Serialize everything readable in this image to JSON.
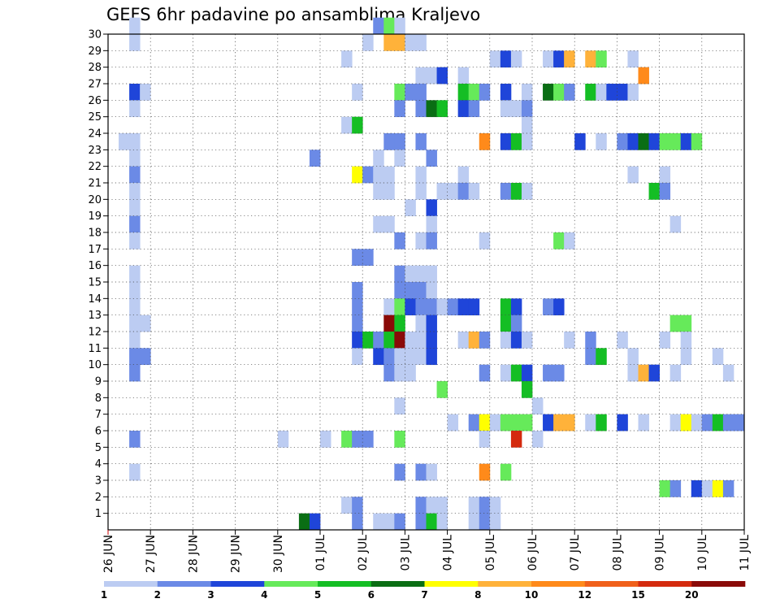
{
  "chart_data": {
    "type": "heatmap",
    "title": "GEFS 6hr padavine po ansamblima Kraljevo",
    "xlabel": "",
    "ylabel": "",
    "x_time_steps": 60,
    "x_tick_labels": [
      "26 JUN",
      "27 JUN",
      "28 JUN",
      "29 JUN",
      "30 JUN",
      "01 JUL",
      "02 JUL",
      "03 JUL",
      "04 JUL",
      "05 JUL",
      "06 JUL",
      "07 JUL",
      "08 JUL",
      "09 JUL",
      "10 JUL",
      "11 JUL"
    ],
    "y_tick_labels": [
      "1",
      "2",
      "3",
      "4",
      "5",
      "6",
      "7",
      "8",
      "9",
      "10",
      "11",
      "12",
      "13",
      "14",
      "15",
      "16",
      "17",
      "18",
      "19",
      "20",
      "21",
      "22",
      "23",
      "24",
      "25",
      "26",
      "27",
      "28",
      "29",
      "30"
    ],
    "ylim": [
      0,
      30
    ],
    "grid": true,
    "legend": {
      "placement": "bottom",
      "labels": [
        "1",
        "2",
        "3",
        "4",
        "5",
        "6",
        "7",
        "8",
        "10",
        "12",
        "15",
        "20"
      ],
      "colors": [
        "#bcccf2",
        "#6b8ae6",
        "#1f45d9",
        "#66ea5a",
        "#14be24",
        "#0a6e14",
        "#ffff00",
        "#ffb23a",
        "#ff8a1a",
        "#f0601a",
        "#d42a0e",
        "#8a0a08"
      ]
    },
    "cells": [
      {
        "m": 30,
        "t": [
          [
            2,
            0
          ],
          [
            25,
            1
          ],
          [
            26,
            3
          ],
          [
            27,
            0
          ]
        ]
      },
      {
        "m": 29,
        "t": [
          [
            2,
            0
          ],
          [
            24,
            0
          ],
          [
            26,
            7
          ],
          [
            27,
            7
          ],
          [
            28,
            0
          ],
          [
            29,
            0
          ]
        ]
      },
      {
        "m": 28,
        "t": [
          [
            22,
            0
          ],
          [
            36,
            0
          ],
          [
            37,
            2
          ],
          [
            38,
            0
          ],
          [
            41,
            0
          ],
          [
            42,
            2
          ],
          [
            43,
            7
          ],
          [
            45,
            7
          ],
          [
            46,
            3
          ],
          [
            49,
            0
          ]
        ]
      },
      {
        "m": 27,
        "t": [
          [
            29,
            0
          ],
          [
            30,
            0
          ],
          [
            31,
            2
          ],
          [
            33,
            0
          ],
          [
            50,
            8
          ]
        ]
      },
      {
        "m": 26,
        "t": [
          [
            2,
            2
          ],
          [
            3,
            0
          ],
          [
            23,
            0
          ],
          [
            27,
            3
          ],
          [
            28,
            1
          ],
          [
            29,
            1
          ],
          [
            33,
            4
          ],
          [
            34,
            3
          ],
          [
            35,
            1
          ],
          [
            37,
            2
          ],
          [
            39,
            0
          ],
          [
            41,
            5
          ],
          [
            42,
            3
          ],
          [
            43,
            1
          ],
          [
            45,
            4
          ],
          [
            46,
            0
          ],
          [
            47,
            2
          ],
          [
            48,
            2
          ],
          [
            49,
            0
          ]
        ]
      },
      {
        "m": 25,
        "t": [
          [
            2,
            0
          ],
          [
            27,
            1
          ],
          [
            29,
            1
          ],
          [
            30,
            5
          ],
          [
            31,
            4
          ],
          [
            33,
            2
          ],
          [
            34,
            1
          ],
          [
            37,
            0
          ],
          [
            38,
            0
          ],
          [
            39,
            1
          ]
        ]
      },
      {
        "m": 24,
        "t": [
          [
            22,
            0
          ],
          [
            23,
            4
          ],
          [
            39,
            0
          ]
        ]
      },
      {
        "m": 23,
        "t": [
          [
            1,
            0
          ],
          [
            2,
            0
          ],
          [
            26,
            1
          ],
          [
            27,
            1
          ],
          [
            29,
            1
          ],
          [
            35,
            8
          ],
          [
            37,
            2
          ],
          [
            38,
            4
          ],
          [
            39,
            0
          ],
          [
            44,
            2
          ],
          [
            46,
            0
          ],
          [
            48,
            1
          ],
          [
            49,
            2
          ],
          [
            50,
            5
          ],
          [
            51,
            2
          ],
          [
            52,
            3
          ],
          [
            53,
            3
          ],
          [
            54,
            2
          ],
          [
            55,
            3
          ]
        ]
      },
      {
        "m": 22,
        "t": [
          [
            2,
            0
          ],
          [
            19,
            1
          ],
          [
            25,
            0
          ],
          [
            27,
            0
          ],
          [
            30,
            1
          ]
        ]
      },
      {
        "m": 21,
        "t": [
          [
            2,
            1
          ],
          [
            23,
            6
          ],
          [
            24,
            1
          ],
          [
            25,
            0
          ],
          [
            26,
            0
          ],
          [
            29,
            0
          ],
          [
            33,
            0
          ],
          [
            49,
            0
          ],
          [
            52,
            0
          ]
        ]
      },
      {
        "m": 20,
        "t": [
          [
            2,
            0
          ],
          [
            25,
            0
          ],
          [
            26,
            0
          ],
          [
            29,
            0
          ],
          [
            31,
            0
          ],
          [
            32,
            0
          ],
          [
            33,
            1
          ],
          [
            34,
            0
          ],
          [
            37,
            1
          ],
          [
            38,
            4
          ],
          [
            39,
            0
          ],
          [
            51,
            4
          ],
          [
            52,
            1
          ]
        ]
      },
      {
        "m": 19,
        "t": [
          [
            2,
            0
          ],
          [
            28,
            0
          ],
          [
            30,
            2
          ]
        ]
      },
      {
        "m": 18,
        "t": [
          [
            2,
            1
          ],
          [
            25,
            0
          ],
          [
            26,
            0
          ],
          [
            30,
            0
          ],
          [
            53,
            0
          ]
        ]
      },
      {
        "m": 17,
        "t": [
          [
            2,
            0
          ],
          [
            27,
            1
          ],
          [
            29,
            0
          ],
          [
            30,
            1
          ],
          [
            35,
            0
          ],
          [
            42,
            3
          ],
          [
            43,
            0
          ]
        ]
      },
      {
        "m": 16,
        "t": [
          [
            23,
            1
          ],
          [
            24,
            1
          ]
        ]
      },
      {
        "m": 15,
        "t": [
          [
            2,
            0
          ],
          [
            27,
            1
          ],
          [
            28,
            0
          ],
          [
            29,
            0
          ],
          [
            30,
            0
          ]
        ]
      },
      {
        "m": 14,
        "t": [
          [
            2,
            0
          ],
          [
            23,
            1
          ],
          [
            27,
            1
          ],
          [
            28,
            1
          ],
          [
            29,
            1
          ],
          [
            30,
            0
          ]
        ]
      },
      {
        "m": 13,
        "t": [
          [
            2,
            0
          ],
          [
            23,
            1
          ],
          [
            26,
            0
          ],
          [
            27,
            3
          ],
          [
            28,
            2
          ],
          [
            29,
            1
          ],
          [
            30,
            1
          ],
          [
            31,
            0
          ],
          [
            32,
            1
          ],
          [
            33,
            2
          ],
          [
            34,
            2
          ],
          [
            37,
            4
          ],
          [
            38,
            2
          ],
          [
            41,
            1
          ],
          [
            42,
            2
          ]
        ]
      },
      {
        "m": 12,
        "t": [
          [
            2,
            0
          ],
          [
            3,
            0
          ],
          [
            23,
            1
          ],
          [
            26,
            11
          ],
          [
            27,
            4
          ],
          [
            29,
            0
          ],
          [
            30,
            2
          ],
          [
            37,
            4
          ],
          [
            38,
            1
          ],
          [
            53,
            3
          ],
          [
            54,
            3
          ]
        ]
      },
      {
        "m": 11,
        "t": [
          [
            2,
            0
          ],
          [
            23,
            2
          ],
          [
            24,
            4
          ],
          [
            25,
            1
          ],
          [
            26,
            4
          ],
          [
            27,
            11
          ],
          [
            28,
            0
          ],
          [
            29,
            0
          ],
          [
            30,
            2
          ],
          [
            33,
            0
          ],
          [
            34,
            7
          ],
          [
            35,
            1
          ],
          [
            37,
            0
          ],
          [
            38,
            2
          ],
          [
            39,
            0
          ],
          [
            43,
            0
          ],
          [
            45,
            1
          ],
          [
            48,
            0
          ],
          [
            52,
            0
          ],
          [
            54,
            0
          ]
        ]
      },
      {
        "m": 10,
        "t": [
          [
            2,
            1
          ],
          [
            3,
            1
          ],
          [
            23,
            0
          ],
          [
            25,
            2
          ],
          [
            26,
            1
          ],
          [
            27,
            0
          ],
          [
            28,
            0
          ],
          [
            29,
            0
          ],
          [
            30,
            2
          ],
          [
            45,
            1
          ],
          [
            46,
            4
          ],
          [
            49,
            0
          ],
          [
            54,
            0
          ],
          [
            57,
            0
          ]
        ]
      },
      {
        "m": 9,
        "t": [
          [
            2,
            1
          ],
          [
            26,
            1
          ],
          [
            27,
            0
          ],
          [
            28,
            0
          ],
          [
            35,
            1
          ],
          [
            37,
            0
          ],
          [
            38,
            4
          ],
          [
            39,
            2
          ],
          [
            41,
            1
          ],
          [
            42,
            1
          ],
          [
            49,
            0
          ],
          [
            50,
            7
          ],
          [
            51,
            2
          ],
          [
            53,
            0
          ],
          [
            58,
            0
          ]
        ]
      },
      {
        "m": 8,
        "t": [
          [
            31,
            3
          ],
          [
            39,
            4
          ]
        ]
      },
      {
        "m": 7,
        "t": [
          [
            27,
            0
          ],
          [
            40,
            0
          ]
        ]
      },
      {
        "m": 6,
        "t": [
          [
            32,
            0
          ],
          [
            34,
            1
          ],
          [
            35,
            6
          ],
          [
            36,
            0
          ],
          [
            37,
            3
          ],
          [
            38,
            3
          ],
          [
            39,
            3
          ],
          [
            41,
            2
          ],
          [
            42,
            7
          ],
          [
            43,
            7
          ],
          [
            45,
            0
          ],
          [
            46,
            4
          ],
          [
            48,
            2
          ],
          [
            50,
            0
          ],
          [
            53,
            0
          ],
          [
            54,
            6
          ],
          [
            55,
            0
          ],
          [
            56,
            1
          ],
          [
            57,
            4
          ],
          [
            58,
            1
          ],
          [
            59,
            1
          ]
        ]
      },
      {
        "m": 5,
        "t": [
          [
            2,
            1
          ],
          [
            16,
            0
          ],
          [
            20,
            0
          ],
          [
            22,
            3
          ],
          [
            23,
            1
          ],
          [
            24,
            1
          ],
          [
            27,
            3
          ],
          [
            35,
            0
          ],
          [
            38,
            10
          ],
          [
            40,
            0
          ]
        ]
      },
      {
        "m": 3,
        "t": [
          [
            2,
            0
          ],
          [
            27,
            1
          ],
          [
            29,
            1
          ],
          [
            30,
            0
          ],
          [
            35,
            8
          ],
          [
            37,
            3
          ]
        ]
      },
      {
        "m": 2,
        "t": [
          [
            52,
            3
          ],
          [
            53,
            1
          ],
          [
            55,
            2
          ],
          [
            56,
            0
          ],
          [
            57,
            6
          ],
          [
            58,
            1
          ]
        ]
      },
      {
        "m": 1,
        "t": [
          [
            22,
            0
          ],
          [
            23,
            1
          ],
          [
            29,
            1
          ],
          [
            30,
            0
          ],
          [
            31,
            0
          ],
          [
            34,
            0
          ],
          [
            35,
            1
          ],
          [
            36,
            0
          ]
        ]
      },
      {
        "m": 0,
        "t": [
          [
            18,
            5
          ],
          [
            19,
            2
          ],
          [
            23,
            1
          ],
          [
            25,
            0
          ],
          [
            26,
            0
          ],
          [
            27,
            1
          ],
          [
            29,
            1
          ],
          [
            30,
            4
          ],
          [
            31,
            0
          ],
          [
            34,
            0
          ],
          [
            35,
            1
          ],
          [
            36,
            0
          ]
        ]
      }
    ]
  }
}
